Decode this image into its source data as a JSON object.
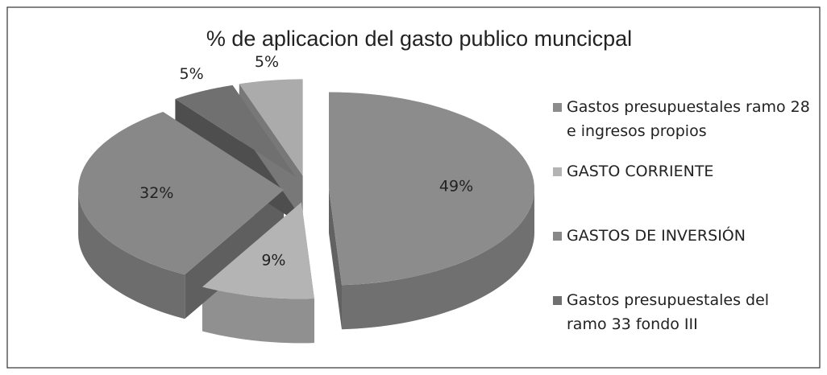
{
  "chart_data": {
    "type": "pie3d",
    "title": "% de aplicacion del gasto publico muncicpal",
    "categories": [
      "Gastos presupuestales ramo 28 e ingresos propios",
      "GASTO CORRIENTE",
      "GASTOS DE INVERSIÓN",
      "Gastos presupuestales del ramo 33 fondo III",
      null
    ],
    "values": [
      49,
      9,
      32,
      5,
      5
    ],
    "value_labels": [
      "49%",
      "9%",
      "32%",
      "5%",
      "5%"
    ],
    "colors": [
      "#8c8c8c",
      "#b4b4b4",
      "#888888",
      "#707070",
      "#ababab"
    ],
    "legend": "right"
  }
}
